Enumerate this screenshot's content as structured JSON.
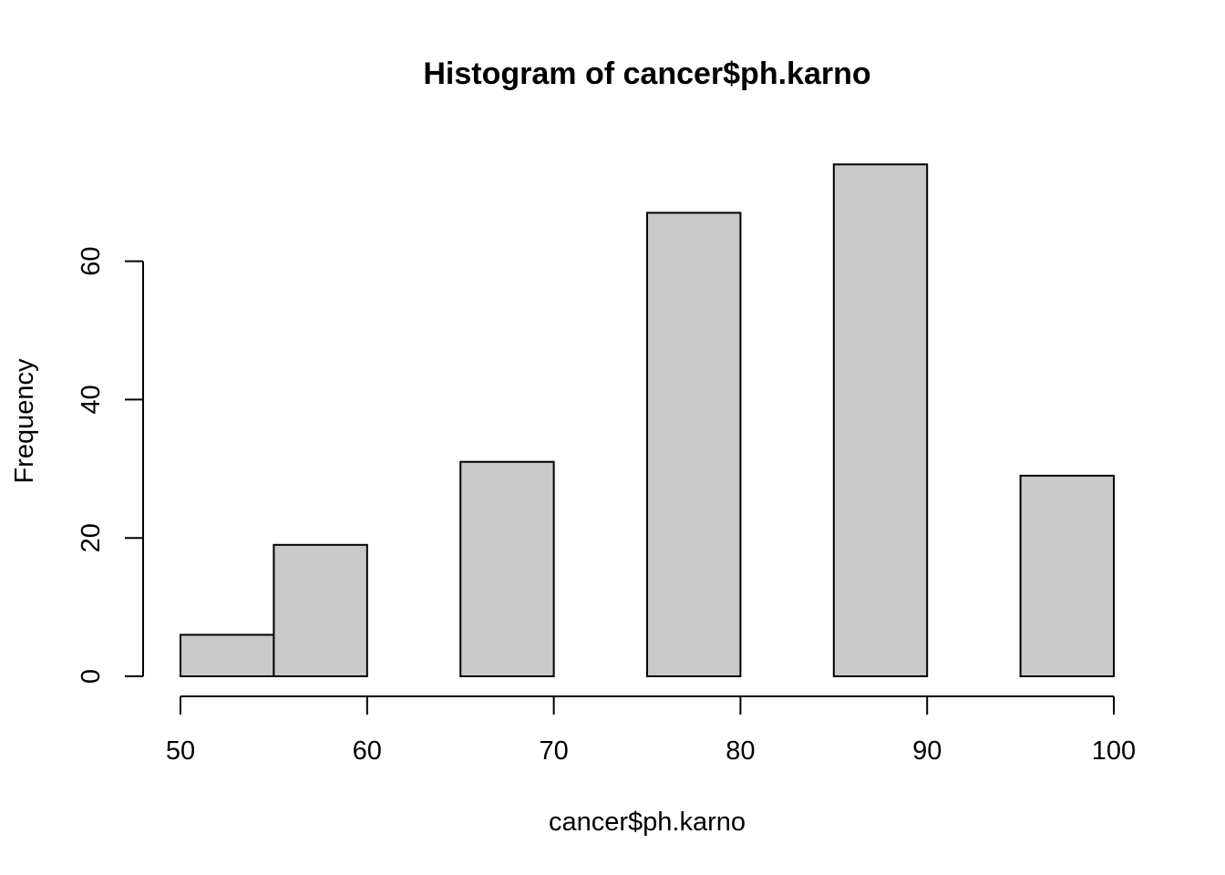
{
  "chart_data": {
    "type": "bar",
    "title": "Histogram of cancer$ph.karno",
    "xlabel": "cancer$ph.karno",
    "ylabel": "Frequency",
    "bins": [
      {
        "from": 50,
        "to": 55,
        "count": 6
      },
      {
        "from": 55,
        "to": 60,
        "count": 19
      },
      {
        "from": 60,
        "to": 65,
        "count": 0
      },
      {
        "from": 65,
        "to": 70,
        "count": 31
      },
      {
        "from": 70,
        "to": 75,
        "count": 0
      },
      {
        "from": 75,
        "to": 80,
        "count": 67
      },
      {
        "from": 80,
        "to": 85,
        "count": 0
      },
      {
        "from": 85,
        "to": 90,
        "count": 74
      },
      {
        "from": 90,
        "to": 95,
        "count": 0
      },
      {
        "from": 95,
        "to": 100,
        "count": 29
      }
    ],
    "xlim": [
      50,
      100
    ],
    "ylim": [
      0,
      74
    ],
    "x_ticks": [
      50,
      60,
      70,
      80,
      90,
      100
    ],
    "y_ticks": [
      0,
      20,
      40,
      60
    ],
    "grid": false,
    "bar_color": "#c9c9c9",
    "border_color": "#000000"
  }
}
